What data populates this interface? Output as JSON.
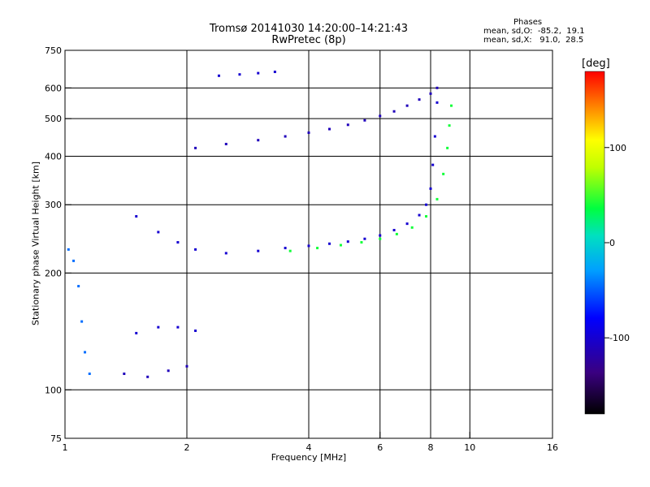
{
  "chart_data": {
    "type": "scatter",
    "title": "Tromsø 20141030 14:20:00–14:21:43",
    "subtitle": "RwPretec (8p)",
    "xlabel": "Frequency [MHz]",
    "ylabel": "Stationary phase Virtual Height [km]",
    "x_scale": "log",
    "y_scale": "log",
    "xlim": [
      1,
      16
    ],
    "ylim": [
      75,
      750
    ],
    "x_ticks": [
      "1",
      "2",
      "4",
      "6",
      "8",
      "10",
      "16"
    ],
    "y_ticks": [
      "75",
      "100",
      "200",
      "300",
      "400",
      "500",
      "600",
      "750"
    ],
    "grid": true,
    "stats": {
      "heading": "Phases",
      "o_line": "mean, sd,O:  -85.2,  19.1",
      "x_line": "mean, sd,X:   91.0,  28.5"
    },
    "colorbar": {
      "label": "[deg]",
      "range": [
        -180,
        180
      ],
      "ticks": [
        "100",
        "0",
        "-100"
      ],
      "tick_values": [
        100,
        0,
        -100
      ]
    },
    "traces": [
      {
        "name": "",
        "phase_deg": -100,
        "points": [
          [
            1.5,
            280
          ],
          [
            1.7,
            255
          ],
          [
            1.9,
            240
          ],
          [
            2.1,
            230
          ],
          [
            2.5,
            225
          ],
          [
            3.0,
            228
          ],
          [
            3.5,
            232
          ],
          [
            4.0,
            235
          ],
          [
            4.5,
            238
          ],
          [
            5.0,
            241
          ],
          [
            5.5,
            245
          ],
          [
            6.0,
            250
          ],
          [
            6.5,
            258
          ],
          [
            7.0,
            268
          ],
          [
            7.5,
            282
          ],
          [
            7.8,
            300
          ],
          [
            8.0,
            330
          ],
          [
            8.1,
            380
          ],
          [
            8.2,
            450
          ],
          [
            8.3,
            550
          ]
        ]
      },
      {
        "name": "",
        "phase_deg": 40,
        "points": [
          [
            3.6,
            228
          ],
          [
            4.2,
            232
          ],
          [
            4.8,
            236
          ],
          [
            5.4,
            240
          ],
          [
            6.0,
            245
          ],
          [
            6.6,
            252
          ],
          [
            7.2,
            262
          ],
          [
            7.8,
            280
          ],
          [
            8.3,
            310
          ],
          [
            8.6,
            360
          ],
          [
            8.8,
            420
          ],
          [
            8.9,
            480
          ],
          [
            9.0,
            540
          ]
        ]
      },
      {
        "name": "",
        "phase_deg": -110,
        "points": [
          [
            2.1,
            420
          ],
          [
            2.5,
            430
          ],
          [
            3.0,
            440
          ],
          [
            3.5,
            450
          ],
          [
            4.0,
            460
          ],
          [
            4.5,
            470
          ],
          [
            5.0,
            482
          ],
          [
            5.5,
            495
          ],
          [
            6.0,
            508
          ],
          [
            6.5,
            522
          ],
          [
            7.0,
            540
          ],
          [
            7.5,
            560
          ],
          [
            8.0,
            580
          ],
          [
            8.3,
            600
          ]
        ]
      },
      {
        "name": "",
        "phase_deg": -100,
        "points": [
          [
            2.4,
            645
          ],
          [
            2.7,
            650
          ],
          [
            3.0,
            655
          ],
          [
            3.3,
            660
          ]
        ]
      },
      {
        "name": "",
        "phase_deg": -110,
        "points": [
          [
            1.4,
            110
          ],
          [
            1.6,
            108
          ],
          [
            1.8,
            112
          ],
          [
            2.0,
            115
          ]
        ]
      },
      {
        "name": "",
        "phase_deg": -100,
        "points": [
          [
            1.5,
            140
          ],
          [
            1.7,
            145
          ],
          [
            1.9,
            145
          ],
          [
            2.1,
            142
          ]
        ]
      },
      {
        "name": "",
        "phase_deg": -45,
        "points": [
          [
            1.02,
            230
          ],
          [
            1.05,
            215
          ],
          [
            1.08,
            185
          ],
          [
            1.1,
            150
          ],
          [
            1.12,
            125
          ],
          [
            1.15,
            110
          ]
        ]
      }
    ]
  }
}
